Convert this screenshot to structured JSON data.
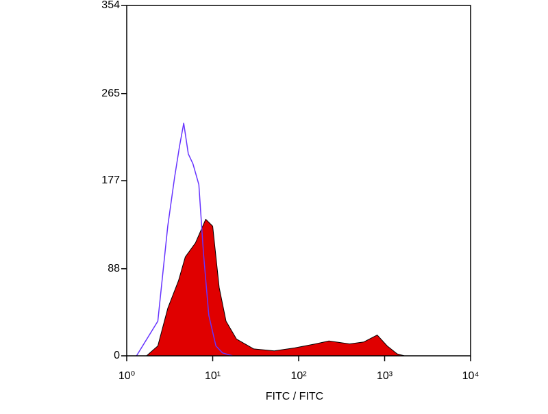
{
  "chart_data": {
    "type": "histogram-overlay",
    "x_label": "FITC / FITC",
    "xscale": "log",
    "xlim": [
      1,
      10000
    ],
    "xticks": [
      {
        "value": 1,
        "label": "10⁰"
      },
      {
        "value": 10,
        "label": "10¹"
      },
      {
        "value": 100,
        "label": "10²"
      },
      {
        "value": 1000,
        "label": "10³"
      },
      {
        "value": 10000,
        "label": "10⁴"
      }
    ],
    "ylim": [
      0,
      354
    ],
    "yticks": [
      0,
      88,
      177,
      265,
      354
    ],
    "series": [
      {
        "color": "#e00000",
        "fill": true,
        "x": [
          1.7,
          2.3,
          3.0,
          4.0,
          4.8,
          6.3,
          8.3,
          10,
          11.9,
          14.3,
          18.9,
          30,
          52,
          90,
          156,
          225,
          390,
          570,
          820,
          1070,
          1400,
          1700
        ],
        "values": [
          0,
          10,
          48,
          76,
          100,
          114,
          138,
          131,
          69,
          35,
          17,
          7,
          5,
          8,
          12,
          15,
          12,
          14,
          21,
          10,
          2,
          0
        ]
      },
      {
        "color": "#6633ff",
        "fill": false,
        "x": [
          1.3,
          2.3,
          3.0,
          3.6,
          4.1,
          4.6,
          5.2,
          5.9,
          6.9,
          7.8,
          9.0,
          10.9,
          13,
          17
        ],
        "values": [
          0,
          35,
          131,
          180,
          211,
          235,
          204,
          194,
          173,
          104,
          41,
          10,
          3,
          0
        ]
      }
    ]
  }
}
